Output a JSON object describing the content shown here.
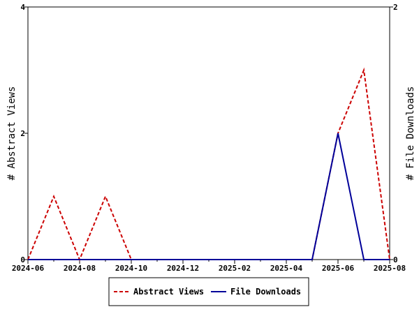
{
  "chart_data": {
    "type": "line",
    "title": "",
    "x_ticks": [
      "2024-06",
      "2024-08",
      "2024-10",
      "2024-12",
      "2025-02",
      "2025-04",
      "2025-06",
      "2025-08"
    ],
    "xlim": [
      "2024-06",
      "2025-08"
    ],
    "y_left": {
      "label": "# Abstract Views",
      "ticks": [
        "0",
        "2",
        "4"
      ],
      "ylim": [
        0,
        4
      ]
    },
    "y_right": {
      "label": "# File Downloads",
      "ticks": [
        "0",
        "2"
      ],
      "ylim": [
        0,
        2
      ]
    },
    "series": [
      {
        "name": "Abstract Views",
        "axis": "left",
        "color": "#cc0000",
        "dash": "dashed",
        "x": [
          "2024-06",
          "2024-07",
          "2024-08",
          "2024-09",
          "2024-10",
          "2024-11",
          "2024-12",
          "2025-01",
          "2025-02",
          "2025-03",
          "2025-04",
          "2025-05",
          "2025-06",
          "2025-07",
          "2025-08"
        ],
        "values": [
          0,
          1,
          0,
          1,
          0,
          0,
          0,
          0,
          0,
          0,
          0,
          0,
          2,
          3,
          0
        ]
      },
      {
        "name": "File Downloads",
        "axis": "right",
        "color": "#000099",
        "dash": "solid",
        "x": [
          "2024-06",
          "2024-07",
          "2024-08",
          "2024-09",
          "2024-10",
          "2024-11",
          "2024-12",
          "2025-01",
          "2025-02",
          "2025-03",
          "2025-04",
          "2025-05",
          "2025-06",
          "2025-07",
          "2025-08"
        ],
        "values": [
          0,
          0,
          0,
          0,
          0,
          0,
          0,
          0,
          0,
          0,
          0,
          0,
          1,
          0,
          0
        ]
      }
    ],
    "grid": false,
    "legend_position": "bottom-center"
  }
}
